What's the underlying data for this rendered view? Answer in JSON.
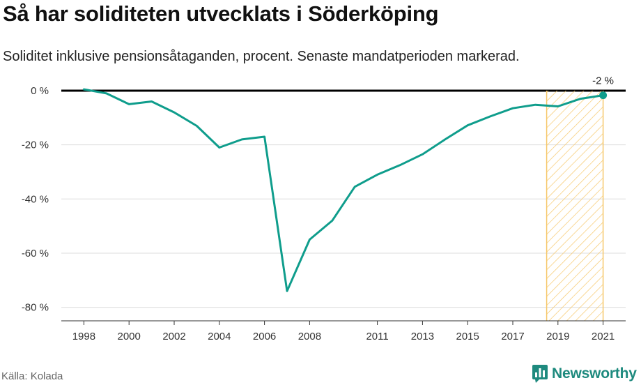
{
  "header": {
    "title": "Så har soliditeten utvecklats i Söderköping",
    "subtitle": "Soliditet inklusive pensionsåtaganden, procent. Senaste mandatperioden markerad."
  },
  "footer": {
    "source": "Källa: Kolada",
    "brand": "Newsworthy",
    "brand_icon": "bar-chart-icon"
  },
  "colors": {
    "line": "#0f9d8c",
    "highlight_stroke": "#f6c86a",
    "grid": "#dddddd",
    "zero_line": "#000000",
    "brand": "#1e8a7e"
  },
  "chart_data": {
    "type": "line",
    "title": "Så har soliditeten utvecklats i Söderköping",
    "subtitle": "Soliditet inklusive pensionsåtaganden, procent. Senaste mandatperioden markerad.",
    "x": [
      1998,
      1999,
      2000,
      2001,
      2002,
      2003,
      2004,
      2005,
      2006,
      2007,
      2008,
      2009,
      2010,
      2011,
      2012,
      2013,
      2014,
      2015,
      2016,
      2017,
      2018,
      2019,
      2020,
      2021
    ],
    "series": [
      {
        "values": [
          0.5,
          -1,
          -5,
          -4,
          -8,
          -13,
          -21,
          -18,
          -17,
          -74,
          -55,
          -48,
          -35.5,
          -31,
          -27.5,
          -23.5,
          -18,
          -12.8,
          -9.5,
          -6.5,
          -5.2,
          -5.8,
          -3,
          -1.7
        ]
      }
    ],
    "x_tick_labels": [
      "1998",
      "2000",
      "2002",
      "2004",
      "2006",
      "2008",
      "2011",
      "2013",
      "2015",
      "2017",
      "2019",
      "2021"
    ],
    "y_ticks": [
      0,
      -20,
      -40,
      -60,
      -80
    ],
    "y_tick_labels": [
      "0 %",
      "-20 %",
      "-40 %",
      "-60 %",
      "-80 %"
    ],
    "xlim": [
      1997,
      2022
    ],
    "ylim": [
      -85,
      0
    ],
    "highlight_range": [
      2018.5,
      2021
    ],
    "end_label": "-2 %",
    "grid": true
  }
}
